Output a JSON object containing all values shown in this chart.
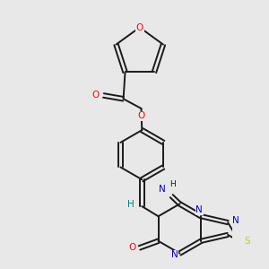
{
  "background_color": "#e8e8e8",
  "bond_color": "#1a1a1a",
  "atom_colors": {
    "O": "#ff0000",
    "N": "#0000cc",
    "S": "#cccc00",
    "H_teal": "#008080",
    "C": "#1a1a1a"
  },
  "figsize": [
    3.0,
    3.0
  ],
  "dpi": 100
}
